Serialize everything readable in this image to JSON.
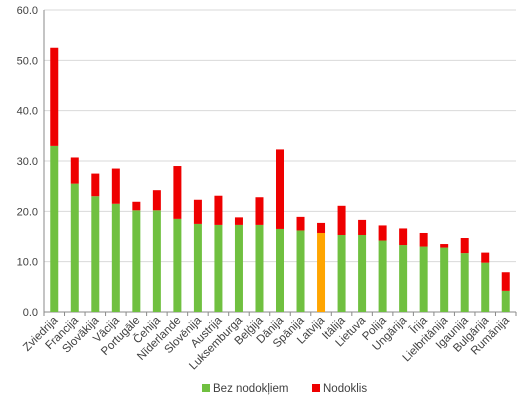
{
  "chart_data": {
    "type": "bar",
    "stacked": true,
    "title": "",
    "xlabel": "",
    "ylabel": "",
    "ylim": [
      0,
      60
    ],
    "yticks": [
      0,
      10,
      20,
      30,
      40,
      50,
      60
    ],
    "ytick_labels": [
      "0.0",
      "10.0",
      "20.0",
      "30.0",
      "40.0",
      "50.0",
      "60.0"
    ],
    "grid": true,
    "legend_position": "bottom",
    "categories": [
      "Zviedrija",
      "Francija",
      "Slovākija",
      "Vācija",
      "Portugāle",
      "Čehija",
      "Nīderlande",
      "Slovēnija",
      "Austrija",
      "Luksemburga",
      "Beļģija",
      "Dānija",
      "Spānija",
      "Latvija",
      "Itālija",
      "Lietuva",
      "Polija",
      "Ungārija",
      "Īrija",
      "Lielbritānija",
      "Igaunija",
      "Bulgārija",
      "Rumānija"
    ],
    "highlight_category": "Latvija",
    "series": [
      {
        "name": "Bez nodokļiem",
        "color": "#70c040",
        "highlight_color": "#ffa500",
        "values": [
          33.0,
          25.5,
          23.0,
          21.5,
          20.2,
          20.2,
          18.5,
          17.5,
          17.3,
          17.3,
          17.3,
          16.5,
          16.2,
          15.7,
          15.3,
          15.3,
          14.2,
          13.3,
          13.0,
          12.8,
          11.7,
          9.8,
          4.2
        ]
      },
      {
        "name": "Nodoklis",
        "color": "#ee0000",
        "values": [
          19.5,
          5.2,
          4.5,
          7.0,
          1.7,
          4.0,
          10.5,
          4.8,
          5.8,
          1.5,
          5.5,
          15.8,
          2.7,
          2.0,
          5.8,
          3.0,
          3.0,
          3.3,
          2.7,
          0.7,
          3.0,
          2.0,
          3.7
        ]
      }
    ]
  },
  "colors": {
    "grid": "#d9d9d9",
    "axis": "#8a8a8a",
    "text": "#404040"
  }
}
